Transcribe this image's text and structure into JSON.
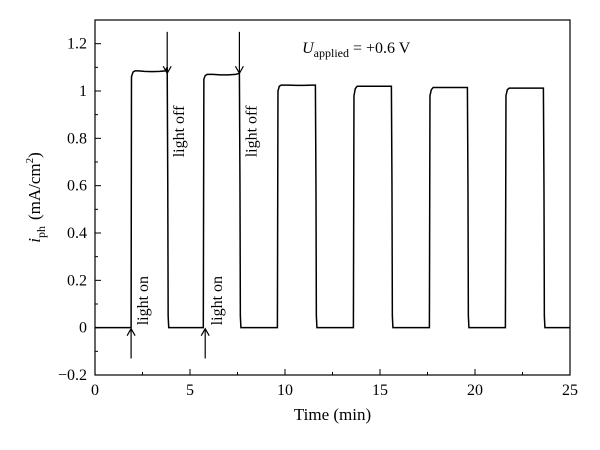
{
  "chart_data": {
    "type": "line",
    "title": "",
    "xlabel": "Time (min)",
    "ylabel": {
      "symbol": "i",
      "subscript": "ph",
      "units_prefix": "(mA/cm",
      "units_sup": "2",
      "units_suffix": ")"
    },
    "xlim": [
      0,
      25
    ],
    "ylim": [
      -0.2,
      1.3
    ],
    "xticks": [
      0,
      5,
      10,
      15,
      20,
      25
    ],
    "xtick_labels": [
      "0",
      "5",
      "10",
      "15",
      "20",
      "25"
    ],
    "yticks": [
      -0.2,
      0,
      0.2,
      0.4,
      0.6,
      0.8,
      1,
      1.2
    ],
    "ytick_labels": [
      "−0.2",
      "0",
      "0.2",
      "0.4",
      "0.6",
      "0.8",
      "1",
      "1.2"
    ],
    "grid": false,
    "legend": "none",
    "line_color": "#000000",
    "condition_label": {
      "symbol": "U",
      "subscript": "applied",
      "value": " = +0.6 V"
    },
    "annotations": [
      {
        "text": "light on",
        "x": 1.9,
        "arrow": "up"
      },
      {
        "text": "light off",
        "x": 3.8,
        "arrow": "down"
      },
      {
        "text": "light on",
        "x": 5.8,
        "arrow": "up"
      },
      {
        "text": "light off",
        "x": 7.6,
        "arrow": "down"
      }
    ],
    "series": [
      {
        "x": [
          0,
          1.9,
          1.92,
          2.0,
          2.1,
          2.3,
          2.6,
          3.0,
          3.4,
          3.7,
          3.8,
          3.83,
          3.85,
          3.88,
          5.7,
          5.73,
          5.8,
          5.9,
          6.2,
          6.6,
          7.0,
          7.4,
          7.6,
          7.63,
          7.65,
          7.68,
          9.6,
          9.63,
          9.7,
          9.8,
          10.2,
          10.6,
          11.0,
          11.4,
          11.6,
          11.63,
          11.65,
          11.68,
          13.6,
          13.63,
          13.7,
          13.8,
          14.2,
          14.6,
          15.0,
          15.4,
          15.6,
          15.63,
          15.65,
          15.68,
          17.6,
          17.63,
          17.7,
          17.8,
          18.2,
          18.6,
          19.0,
          19.4,
          19.6,
          19.63,
          19.65,
          19.68,
          21.6,
          21.63,
          21.7,
          21.8,
          22.2,
          22.6,
          23.0,
          23.4,
          23.6,
          23.63,
          23.65,
          23.68,
          25
        ],
        "y": [
          0,
          0,
          1.06,
          1.08,
          1.085,
          1.085,
          1.083,
          1.082,
          1.083,
          1.085,
          1.1,
          0.6,
          0.05,
          0,
          0,
          1.05,
          1.065,
          1.07,
          1.07,
          1.068,
          1.068,
          1.07,
          1.075,
          0.6,
          0.05,
          0,
          0,
          1.0,
          1.02,
          1.025,
          1.025,
          1.024,
          1.024,
          1.025,
          1.025,
          0.6,
          0.05,
          0,
          0,
          0.98,
          1.01,
          1.02,
          1.02,
          1.02,
          1.02,
          1.02,
          1.02,
          0.6,
          0.05,
          0,
          0,
          0.98,
          1.005,
          1.015,
          1.015,
          1.015,
          1.015,
          1.015,
          1.015,
          0.6,
          0.05,
          0,
          0,
          0.98,
          1.005,
          1.012,
          1.012,
          1.012,
          1.012,
          1.012,
          1.012,
          0.6,
          0.05,
          0,
          0
        ]
      }
    ]
  }
}
